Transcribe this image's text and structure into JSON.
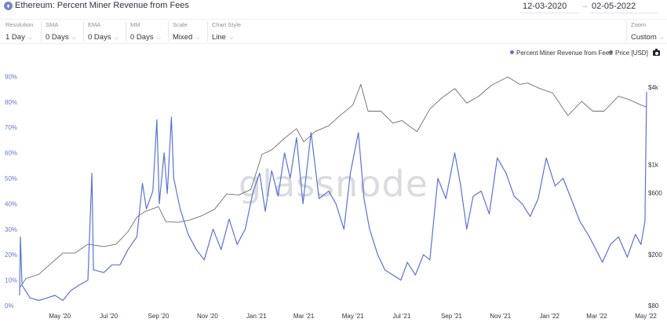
{
  "header": {
    "title": "Ethereum: Percent Miner Revenue from Fees",
    "asset_icon": "ethereum-icon",
    "date_start": "12-03-2020",
    "date_sep": "→",
    "date_end": "02-05-2022"
  },
  "controls": [
    {
      "key": "resolution",
      "label": "Resolution",
      "value": "1 Day"
    },
    {
      "key": "sma",
      "label": "SMA",
      "value": "0 Days"
    },
    {
      "key": "ema",
      "label": "EMA",
      "value": "0 Days"
    },
    {
      "key": "mm",
      "label": "MM",
      "value": "0 Days"
    },
    {
      "key": "scale",
      "label": "Scale",
      "value": "Mixed"
    },
    {
      "key": "chart-style",
      "label": "Chart Style",
      "value": "Line"
    },
    {
      "key": "zoom",
      "label": "Zoom",
      "value": "Custom"
    }
  ],
  "legend": {
    "fees_label": "Percent Miner Revenue from Fees",
    "price_label": "Price [USD]",
    "fees_color": "#5a72d6",
    "price_color": "#6e6e6e",
    "camera_icon": "camera-icon"
  },
  "watermark": "glassnode",
  "chart_data": {
    "type": "line",
    "title": "Ethereum: Percent Miner Revenue from Fees",
    "x_ticks": [
      "May '20",
      "Jul '20",
      "Sep '20",
      "Nov '20",
      "Jan '21",
      "Mar '21",
      "May '21",
      "Jul '21",
      "Sep '21",
      "Nov '21",
      "Jan '22",
      "Mar '22",
      "May '22"
    ],
    "y_left_ticks": [
      "0%",
      "10%",
      "20%",
      "30%",
      "40%",
      "50%",
      "60%",
      "70%",
      "80%",
      "90%"
    ],
    "y_left_range": [
      0,
      93
    ],
    "y_right_ticks": [
      "$80",
      "$200",
      "$600",
      "$1k",
      "$4k"
    ],
    "y_right_scale": "log",
    "y_right_range": [
      80,
      5000
    ],
    "grid": false,
    "legend_position": "top-right",
    "series": [
      {
        "name": "Percent Miner Revenue from Fees",
        "axis": "left",
        "color": "#5a72d6",
        "points": [
          [
            "2020-03-12",
            4
          ],
          [
            "2020-03-13",
            27
          ],
          [
            "2020-03-15",
            8
          ],
          [
            "2020-03-25",
            3
          ],
          [
            "2020-04-05",
            2
          ],
          [
            "2020-04-15",
            3
          ],
          [
            "2020-04-25",
            4
          ],
          [
            "2020-05-05",
            2
          ],
          [
            "2020-05-15",
            6
          ],
          [
            "2020-05-25",
            8
          ],
          [
            "2020-06-05",
            10
          ],
          [
            "2020-06-10",
            52
          ],
          [
            "2020-06-12",
            14
          ],
          [
            "2020-06-25",
            13
          ],
          [
            "2020-07-05",
            16
          ],
          [
            "2020-07-15",
            16
          ],
          [
            "2020-07-25",
            22
          ],
          [
            "2020-08-05",
            27
          ],
          [
            "2020-08-12",
            48
          ],
          [
            "2020-08-17",
            38
          ],
          [
            "2020-08-25",
            45
          ],
          [
            "2020-08-30",
            73
          ],
          [
            "2020-09-02",
            40
          ],
          [
            "2020-09-08",
            60
          ],
          [
            "2020-09-12",
            44
          ],
          [
            "2020-09-17",
            74
          ],
          [
            "2020-09-20",
            50
          ],
          [
            "2020-09-28",
            38
          ],
          [
            "2020-10-08",
            28
          ],
          [
            "2020-10-18",
            22
          ],
          [
            "2020-10-28",
            18
          ],
          [
            "2020-11-08",
            30
          ],
          [
            "2020-11-18",
            22
          ],
          [
            "2020-11-28",
            34
          ],
          [
            "2020-12-08",
            24
          ],
          [
            "2020-12-18",
            30
          ],
          [
            "2020-12-28",
            45
          ],
          [
            "2021-01-05",
            52
          ],
          [
            "2021-01-12",
            37
          ],
          [
            "2021-01-20",
            53
          ],
          [
            "2021-01-28",
            43
          ],
          [
            "2021-02-05",
            60
          ],
          [
            "2021-02-12",
            50
          ],
          [
            "2021-02-20",
            66
          ],
          [
            "2021-02-28",
            40
          ],
          [
            "2021-03-10",
            68
          ],
          [
            "2021-03-20",
            42
          ],
          [
            "2021-04-01",
            45
          ],
          [
            "2021-04-10",
            40
          ],
          [
            "2021-04-20",
            30
          ],
          [
            "2021-04-28",
            52
          ],
          [
            "2021-05-08",
            68
          ],
          [
            "2021-05-15",
            42
          ],
          [
            "2021-05-22",
            30
          ],
          [
            "2021-06-01",
            20
          ],
          [
            "2021-06-10",
            14
          ],
          [
            "2021-06-20",
            12
          ],
          [
            "2021-06-30",
            10
          ],
          [
            "2021-07-08",
            17
          ],
          [
            "2021-07-18",
            12
          ],
          [
            "2021-07-28",
            20
          ],
          [
            "2021-08-05",
            18
          ],
          [
            "2021-08-15",
            50
          ],
          [
            "2021-08-25",
            42
          ],
          [
            "2021-09-05",
            60
          ],
          [
            "2021-09-12",
            48
          ],
          [
            "2021-09-20",
            30
          ],
          [
            "2021-09-28",
            43
          ],
          [
            "2021-10-08",
            45
          ],
          [
            "2021-10-18",
            36
          ],
          [
            "2021-10-28",
            58
          ],
          [
            "2021-11-08",
            52
          ],
          [
            "2021-11-18",
            43
          ],
          [
            "2021-11-28",
            40
          ],
          [
            "2021-12-08",
            35
          ],
          [
            "2021-12-18",
            42
          ],
          [
            "2021-12-28",
            58
          ],
          [
            "2022-01-08",
            47
          ],
          [
            "2022-01-18",
            50
          ],
          [
            "2022-01-28",
            42
          ],
          [
            "2022-02-08",
            33
          ],
          [
            "2022-02-18",
            28
          ],
          [
            "2022-02-28",
            22
          ],
          [
            "2022-03-08",
            17
          ],
          [
            "2022-03-18",
            24
          ],
          [
            "2022-03-28",
            27
          ],
          [
            "2022-04-08",
            19
          ],
          [
            "2022-04-18",
            28
          ],
          [
            "2022-04-25",
            24
          ],
          [
            "2022-04-30",
            33
          ],
          [
            "2022-05-02",
            84
          ]
        ]
      },
      {
        "name": "Price [USD]",
        "axis": "right",
        "color": "#6e6e6e",
        "points": [
          [
            "2020-03-12",
            110
          ],
          [
            "2020-03-20",
            130
          ],
          [
            "2020-04-05",
            140
          ],
          [
            "2020-04-20",
            170
          ],
          [
            "2020-05-05",
            205
          ],
          [
            "2020-05-20",
            205
          ],
          [
            "2020-06-05",
            240
          ],
          [
            "2020-06-25",
            230
          ],
          [
            "2020-07-10",
            240
          ],
          [
            "2020-07-25",
            300
          ],
          [
            "2020-08-05",
            390
          ],
          [
            "2020-08-15",
            430
          ],
          [
            "2020-09-01",
            470
          ],
          [
            "2020-09-10",
            360
          ],
          [
            "2020-09-25",
            355
          ],
          [
            "2020-10-10",
            370
          ],
          [
            "2020-10-25",
            400
          ],
          [
            "2020-11-10",
            450
          ],
          [
            "2020-11-25",
            590
          ],
          [
            "2020-12-10",
            580
          ],
          [
            "2020-12-25",
            640
          ],
          [
            "2021-01-08",
            1200
          ],
          [
            "2021-01-20",
            1300
          ],
          [
            "2021-02-05",
            1600
          ],
          [
            "2021-02-20",
            1900
          ],
          [
            "2021-03-01",
            1500
          ],
          [
            "2021-03-15",
            1800
          ],
          [
            "2021-04-01",
            2000
          ],
          [
            "2021-04-15",
            2400
          ],
          [
            "2021-05-01",
            2900
          ],
          [
            "2021-05-11",
            4200
          ],
          [
            "2021-05-20",
            2600
          ],
          [
            "2021-06-05",
            2600
          ],
          [
            "2021-06-20",
            2100
          ],
          [
            "2021-07-01",
            2200
          ],
          [
            "2021-07-20",
            1800
          ],
          [
            "2021-08-05",
            2700
          ],
          [
            "2021-08-20",
            3300
          ],
          [
            "2021-09-05",
            3900
          ],
          [
            "2021-09-20",
            3000
          ],
          [
            "2021-10-05",
            3400
          ],
          [
            "2021-10-20",
            4100
          ],
          [
            "2021-11-10",
            4800
          ],
          [
            "2021-11-25",
            4200
          ],
          [
            "2021-12-05",
            4300
          ],
          [
            "2021-12-20",
            3900
          ],
          [
            "2022-01-05",
            3600
          ],
          [
            "2022-01-24",
            2400
          ],
          [
            "2022-02-10",
            3100
          ],
          [
            "2022-02-24",
            2600
          ],
          [
            "2022-03-10",
            2600
          ],
          [
            "2022-03-28",
            3400
          ],
          [
            "2022-04-10",
            3200
          ],
          [
            "2022-04-25",
            2900
          ],
          [
            "2022-05-02",
            2800
          ]
        ]
      }
    ]
  }
}
